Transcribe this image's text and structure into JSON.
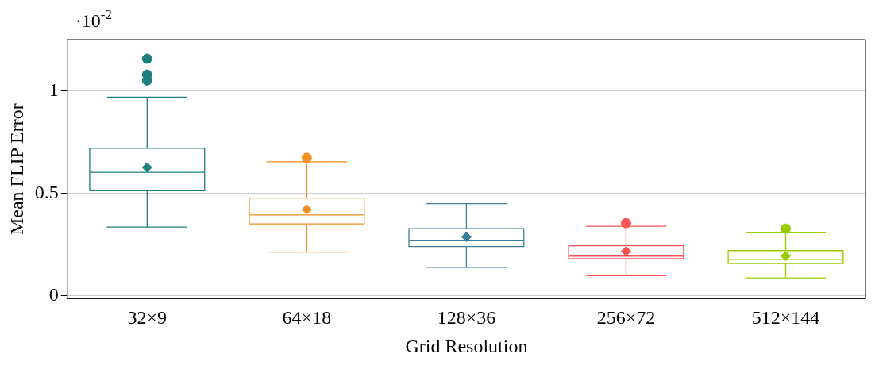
{
  "chart_data": {
    "type": "box",
    "xlabel": "Grid Resolution",
    "ylabel": "Mean FLIP Error",
    "categories": [
      "32×9",
      "64×18",
      "128×36",
      "256×72",
      "512×144"
    ],
    "colors": [
      "#1f7f7f",
      "#f28e1c",
      "#3d7f99",
      "#ff5252",
      "#99cc00"
    ],
    "boxes": [
      {
        "low": 0.335,
        "q1": 0.512,
        "median": 0.602,
        "q3": 0.72,
        "high": 0.969,
        "mean": 0.626,
        "outliers": [
          1.157,
          1.079,
          1.051
        ]
      },
      {
        "low": 0.213,
        "q1": 0.35,
        "median": 0.394,
        "q3": 0.476,
        "high": 0.654,
        "mean": 0.421,
        "outliers": [
          0.673
        ]
      },
      {
        "low": 0.138,
        "q1": 0.24,
        "median": 0.268,
        "q3": 0.327,
        "high": 0.449,
        "mean": 0.287
      },
      {
        "low": 0.098,
        "q1": 0.181,
        "median": 0.193,
        "q3": 0.244,
        "high": 0.339,
        "mean": 0.217,
        "outliers": [
          0.354
        ]
      },
      {
        "low": 0.087,
        "q1": 0.157,
        "median": 0.177,
        "q3": 0.22,
        "high": 0.307,
        "mean": 0.193,
        "outliers": [
          0.327
        ]
      }
    ],
    "ylim": [
      -0.015,
      1.25
    ],
    "yticks": [
      0,
      0.5,
      1
    ],
    "grid": "y",
    "marker": "circle",
    "annotations": [
      "·10$^{-2}$"
    ]
  }
}
